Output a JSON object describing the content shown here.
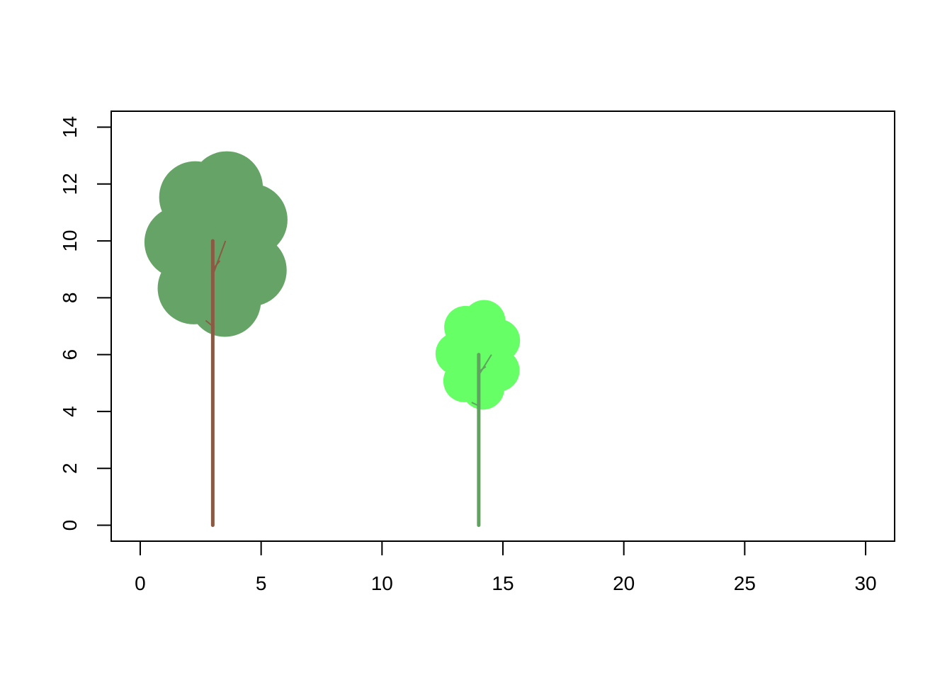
{
  "chart_data": {
    "type": "scatter",
    "title": "",
    "xlabel": "",
    "ylabel": "",
    "xlim": [
      -1.2,
      31.2
    ],
    "ylim": [
      -0.56,
      14.56
    ],
    "x_ticks": [
      0,
      5,
      10,
      15,
      20,
      25,
      30
    ],
    "y_ticks": [
      0,
      2,
      4,
      6,
      8,
      10,
      12,
      14
    ],
    "x_tick_labels": [
      "0",
      "5",
      "10",
      "15",
      "20",
      "25",
      "30"
    ],
    "y_tick_labels": [
      "0",
      "2",
      "4",
      "6",
      "8",
      "10",
      "12",
      "14"
    ],
    "grid": false,
    "trees": [
      {
        "x": 3,
        "trunk_height": 10,
        "crown_center": [
          3.2,
          9.9
        ],
        "crown_radius": 3.3,
        "crown_color": "#66a366",
        "crown_edge_color": "#4f8a4f",
        "trunk_color": "#8b5a44"
      },
      {
        "x": 14,
        "trunk_height": 6,
        "crown_center": [
          14.0,
          6.0
        ],
        "crown_radius": 1.95,
        "crown_color": "#66ff66",
        "crown_edge_color": "#40e040",
        "trunk_color": "#5fa35f"
      }
    ]
  },
  "colors": {
    "background": "#ffffff",
    "axis": "#000000"
  }
}
